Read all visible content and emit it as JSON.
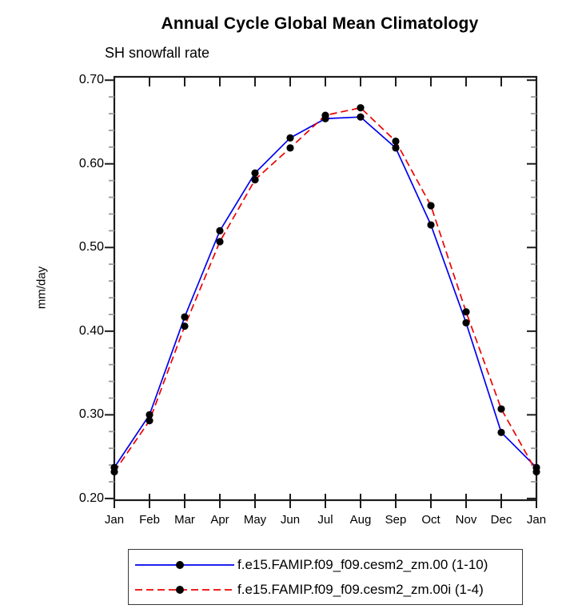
{
  "title": "Annual Cycle Global Mean Climatology",
  "subtitle": "SH snowfall rate",
  "chart_data": {
    "type": "line",
    "x": [
      "Jan",
      "Feb",
      "Mar",
      "Apr",
      "May",
      "Jun",
      "Jul",
      "Aug",
      "Sep",
      "Oct",
      "Nov",
      "Dec",
      "Jan"
    ],
    "ylabel": "mm/day",
    "xlabel": "",
    "ylim": [
      0.198,
      0.704
    ],
    "ytick_major": [
      0.2,
      0.3,
      0.4,
      0.5,
      0.6,
      0.7
    ],
    "ytick_labels": [
      "0.20",
      "0.30",
      "0.40",
      "0.50",
      "0.60",
      "0.70"
    ],
    "ytick_minor_step": 0.02,
    "grid": false,
    "legend_position": "bottom-center-boxed",
    "marker": "filled-black-circle",
    "series": [
      {
        "name": "f.e15.FAMIP.f09_f09.cesm2_zm.00 (1-10)",
        "color": "#0000ee",
        "line_style": "solid",
        "values": [
          0.237,
          0.3,
          0.417,
          0.52,
          0.589,
          0.631,
          0.654,
          0.656,
          0.619,
          0.527,
          0.41,
          0.279,
          0.237
        ]
      },
      {
        "name": "f.e15.FAMIP.f09_f09.cesm2_zm.00i (1-4)",
        "color": "#ee0000",
        "line_style": "dashed",
        "values": [
          0.232,
          0.293,
          0.406,
          0.507,
          0.581,
          0.619,
          0.658,
          0.667,
          0.627,
          0.55,
          0.423,
          0.307,
          0.232
        ]
      }
    ],
    "colors": {
      "axis": "#1c1c1c",
      "minor_tick": "#9a9a9a",
      "marker": "#000000"
    }
  }
}
